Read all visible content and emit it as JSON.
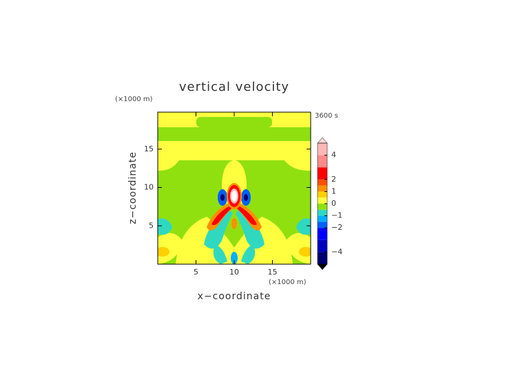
{
  "chart_data": {
    "type": "contour",
    "title": "vertical velocity",
    "time_label": "3600 s",
    "x_label": "x−coordinate",
    "y_label": "z−coordinate",
    "x_unit": "(×1000 m)",
    "y_unit": "(×1000 m)",
    "xlim": [
      0,
      20
    ],
    "ylim": [
      0,
      20
    ],
    "xticks": [
      5,
      10,
      15
    ],
    "yticks": [
      5,
      10,
      15
    ],
    "colorbar": {
      "lim": [
        -5,
        5
      ],
      "levels": [
        -5,
        -4,
        -3,
        -2,
        -1.5,
        -1,
        -0.5,
        0,
        0.5,
        1,
        1.5,
        2,
        3,
        4,
        5
      ],
      "colors": [
        "#000070",
        "#0000c0",
        "#0000ff",
        "#0060ff",
        "#00b0ff",
        "#30d8c0",
        "#90e010",
        "#ffff40",
        "#ffd000",
        "#ff9000",
        "#ff5000",
        "#ff0000",
        "#ff8a8a",
        "#ffb8b8"
      ],
      "under_color": "#000000",
      "over_color": "#ffd8d8",
      "ticks": [
        {
          "value": 4,
          "label": "4"
        },
        {
          "value": 2,
          "label": "2"
        },
        {
          "value": 1,
          "label": "1"
        },
        {
          "value": 0,
          "label": "0"
        },
        {
          "value": -1,
          "label": "−1"
        },
        {
          "value": -2,
          "label": "−2"
        },
        {
          "value": -4,
          "label": "−4"
        }
      ]
    }
  }
}
